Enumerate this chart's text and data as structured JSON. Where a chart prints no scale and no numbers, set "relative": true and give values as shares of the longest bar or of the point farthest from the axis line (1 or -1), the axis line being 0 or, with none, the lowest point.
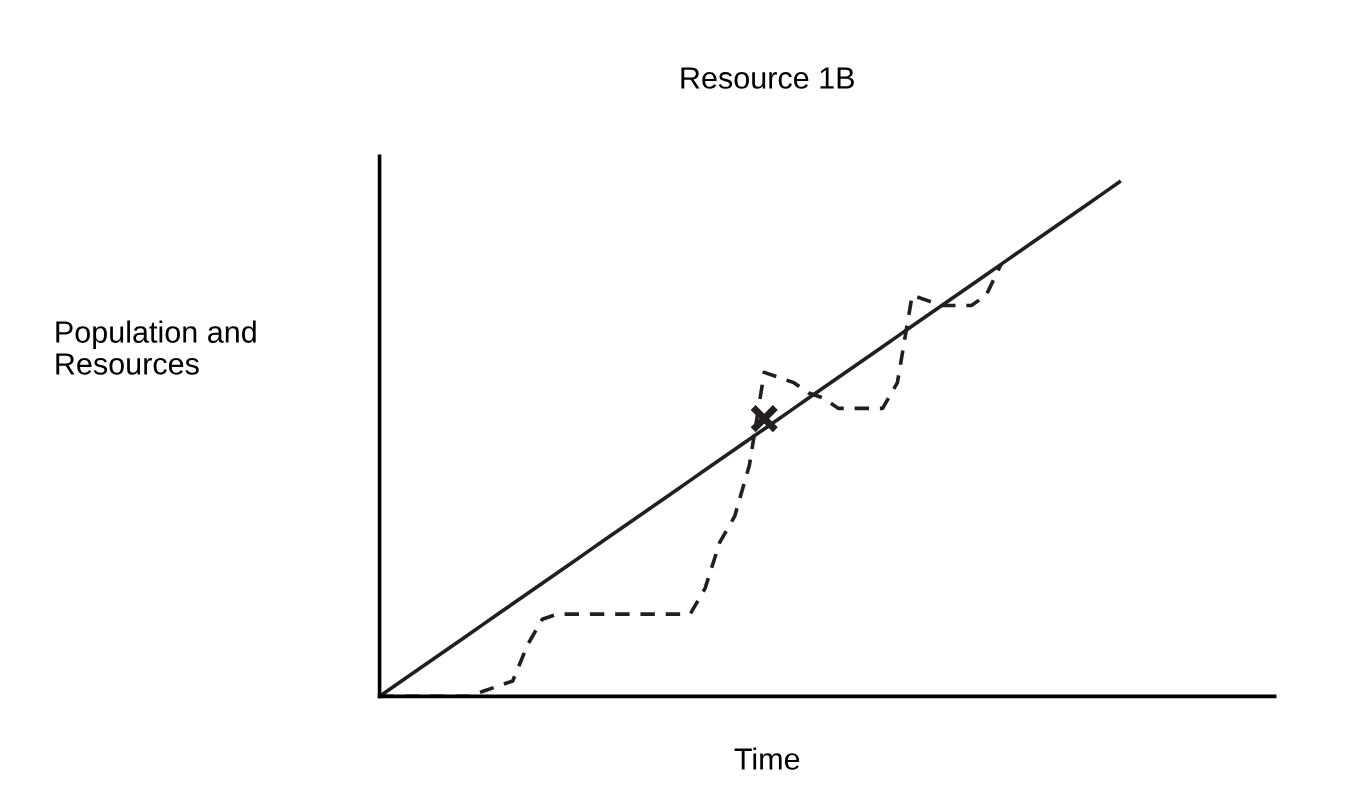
{
  "chart_data": {
    "type": "line",
    "title": "Resource 1B",
    "xlabel": "Time",
    "ylabel": "Population and\nResources",
    "relative": true,
    "categories": [
      null,
      null,
      null,
      null,
      null,
      null,
      null,
      null,
      null,
      null,
      null,
      null,
      null,
      null,
      null,
      null,
      null,
      null,
      null,
      null,
      null,
      null,
      null,
      null,
      null,
      null,
      null,
      null,
      null,
      null,
      null,
      null,
      null,
      null,
      null,
      null,
      null,
      null,
      null,
      null,
      null,
      null,
      null,
      null,
      null,
      null,
      null,
      null,
      null,
      null,
      null
    ],
    "series": [
      {
        "color": "#231f20",
        "line_style": "solid",
        "values": [
          0,
          0.02,
          0.04,
          0.06,
          0.08,
          0.1,
          0.12,
          0.14,
          0.16,
          0.18,
          0.2,
          0.22,
          0.24,
          0.26,
          0.28,
          0.3,
          0.32,
          0.34,
          0.36,
          0.38,
          0.4,
          0.42,
          0.44,
          0.46,
          0.48,
          0.5,
          0.52,
          0.54,
          0.56,
          0.58,
          0.6,
          0.62,
          0.64,
          0.66,
          0.68,
          0.7,
          0.72,
          0.74,
          0.76,
          0.78,
          0.8,
          0.82,
          0.84,
          0.86,
          0.88,
          0.9,
          0.92,
          0.94,
          0.96,
          0.98,
          1
        ]
      },
      {
        "color": "#231f20",
        "line_style": "dashed",
        "values": [
          0,
          0,
          0,
          0,
          0,
          0,
          0,
          0.01,
          0.02,
          0.03,
          0.1,
          0.15,
          0.16,
          0.16,
          0.16,
          0.16,
          0.16,
          0.16,
          0.16,
          0.16,
          0.16,
          0.16,
          0.21,
          0.3,
          0.35,
          0.45,
          0.63,
          0.62,
          0.61,
          0.59,
          0.58,
          0.56,
          0.56,
          0.56,
          0.56,
          0.61,
          0.78,
          0.77,
          0.76,
          0.76,
          0.76,
          0.78,
          0.84,
          null,
          null,
          null,
          null,
          null,
          null,
          null,
          null
        ]
      },
      {
        "color": "#231f20",
        "marker": "cross",
        "line_style": "solid",
        "values": [
          null,
          null,
          null,
          null,
          null,
          null,
          null,
          null,
          null,
          null,
          null,
          null,
          null,
          null,
          null,
          null,
          null,
          null,
          null,
          null,
          null,
          null,
          null,
          null,
          null,
          null,
          0.54,
          null,
          null,
          null,
          null,
          null,
          null,
          null,
          null,
          null,
          null,
          null,
          null,
          null,
          null,
          null,
          null,
          null,
          null,
          null,
          null,
          null,
          null,
          null,
          null
        ]
      }
    ]
  }
}
